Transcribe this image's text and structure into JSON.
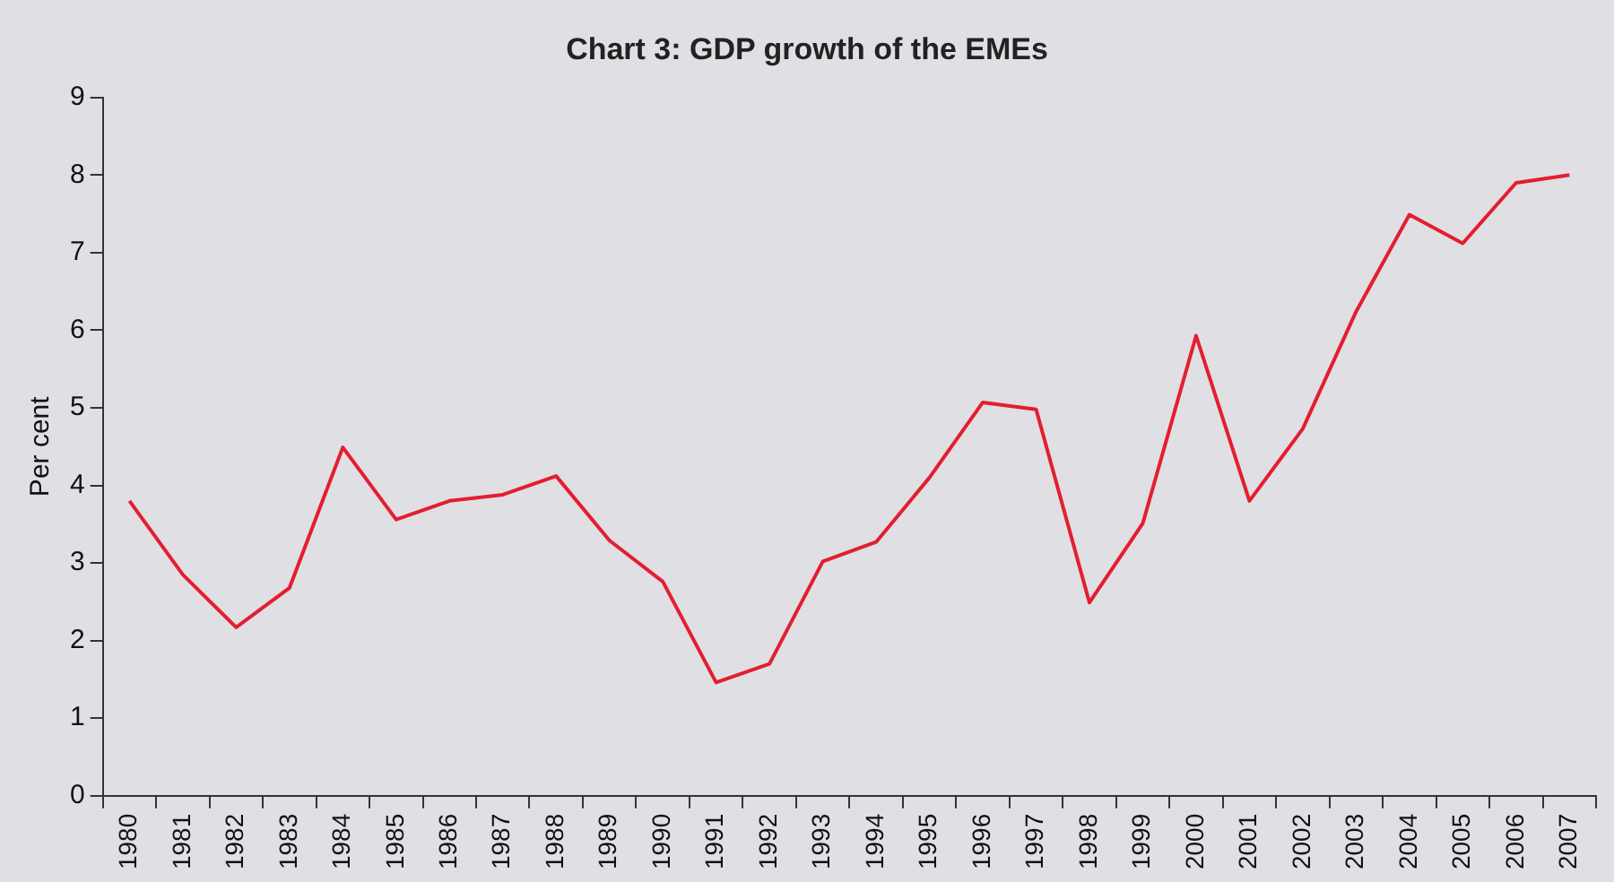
{
  "chart_data": {
    "type": "line",
    "title": "Chart 3: GDP growth of the EMEs",
    "ylabel": "Per cent",
    "categories": [
      "1980",
      "1981",
      "1982",
      "1983",
      "1984",
      "1985",
      "1986",
      "1987",
      "1988",
      "1989",
      "1990",
      "1991",
      "1992",
      "1993",
      "1994",
      "1995",
      "1996",
      "1997",
      "1998",
      "1999",
      "2000",
      "2001",
      "2002",
      "2003",
      "2004",
      "2005",
      "2006",
      "2007"
    ],
    "series": [
      {
        "color": "#e31e30",
        "values": [
          3.8,
          2.85,
          2.17,
          2.68,
          4.49,
          3.56,
          3.8,
          3.88,
          4.12,
          3.29,
          2.76,
          1.46,
          1.7,
          3.02,
          3.27,
          4.1,
          5.07,
          4.98,
          2.49,
          3.51,
          5.93,
          3.8,
          4.73,
          6.24,
          7.49,
          7.12,
          7.9,
          8.0
        ]
      }
    ],
    "ylim": [
      0,
      9
    ],
    "yticks": [
      0,
      1,
      2,
      3,
      4,
      5,
      6,
      7,
      8,
      9
    ],
    "grid": false,
    "legend": false,
    "marker": "none",
    "line_style": "solid"
  }
}
